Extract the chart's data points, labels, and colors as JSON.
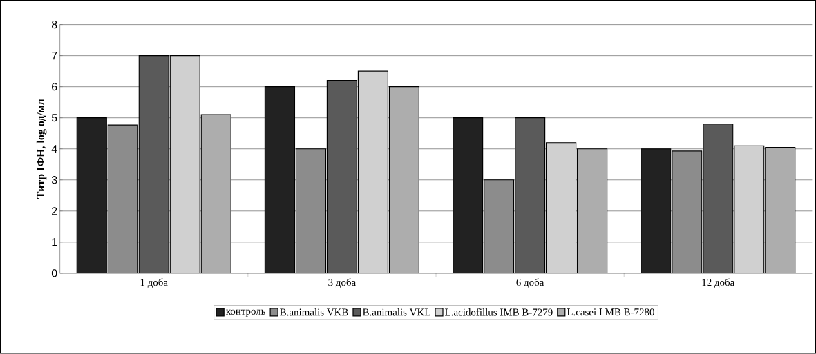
{
  "chart_data": {
    "type": "bar",
    "ylabel": "Титр ІФН, log од/мл",
    "categories": [
      "1 доба",
      "3 доба",
      "6 доба",
      "12 доба"
    ],
    "series": [
      {
        "name": "контроль",
        "color": "#222222",
        "values": [
          5,
          6,
          5,
          4
        ]
      },
      {
        "name": "B.animalis VKB",
        "color": "#8c8c8c",
        "values": [
          4.77,
          4,
          3,
          3.93
        ]
      },
      {
        "name": "B.animalis VKL",
        "color": "#5a5a5a",
        "values": [
          7,
          6.2,
          5,
          4.8
        ]
      },
      {
        "name": "L.acidofillus IMB B-7279",
        "color": "#d0d0d0",
        "values": [
          7,
          6.5,
          4.2,
          4.1
        ]
      },
      {
        "name": "L.casei I MB B-7280",
        "color": "#adadad",
        "values": [
          5.1,
          6,
          4,
          4.05
        ]
      }
    ],
    "ylim": [
      0,
      8
    ],
    "yticks": [
      0,
      1,
      2,
      3,
      4,
      5,
      6,
      7,
      8
    ],
    "grid": "y",
    "legend": "bottom"
  }
}
